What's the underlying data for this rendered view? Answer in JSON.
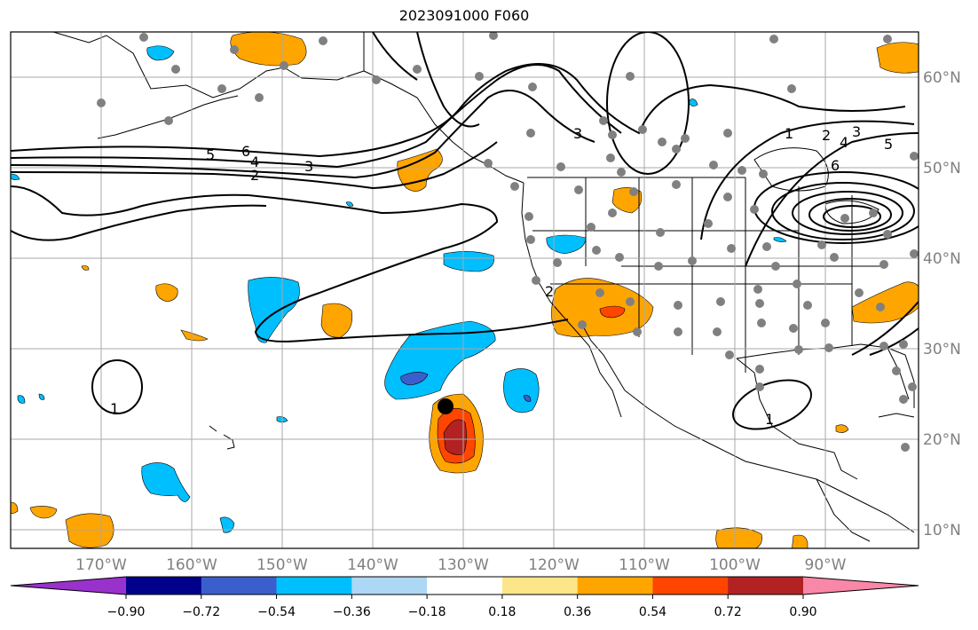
{
  "title": "2023091000 F060",
  "map": {
    "lon_ticks": [
      {
        "label": "170°W"
      },
      {
        "label": "160°W"
      },
      {
        "label": "150°W"
      },
      {
        "label": "140°W"
      },
      {
        "label": "130°W"
      },
      {
        "label": "120°W"
      },
      {
        "label": "110°W"
      },
      {
        "label": "100°W"
      },
      {
        "label": "90°W"
      }
    ],
    "lat_ticks": [
      {
        "label": "60°N"
      },
      {
        "label": "50°N"
      },
      {
        "label": "40°N"
      },
      {
        "label": "30°N"
      },
      {
        "label": "20°N"
      },
      {
        "label": "10°N"
      }
    ],
    "contour_labels": [
      "1",
      "2",
      "3",
      "4",
      "5",
      "6"
    ],
    "grid": true,
    "colors": {
      "contour": "#000000",
      "station": "#808080",
      "marker": "#000000",
      "gridline": "#a9a9a9"
    }
  },
  "colorbar": {
    "ticks": [
      "−0.90",
      "−0.72",
      "−0.54",
      "−0.36",
      "−0.18",
      "0.18",
      "0.36",
      "0.54",
      "0.72",
      "0.90"
    ],
    "colors": [
      "#9932cc",
      "#00008b",
      "#3a5fcd",
      "#00bfff",
      "#add8f5",
      "#ffffff",
      "#fde68a",
      "#ffa500",
      "#ff4500",
      "#b22222",
      "#f987a8"
    ]
  }
}
